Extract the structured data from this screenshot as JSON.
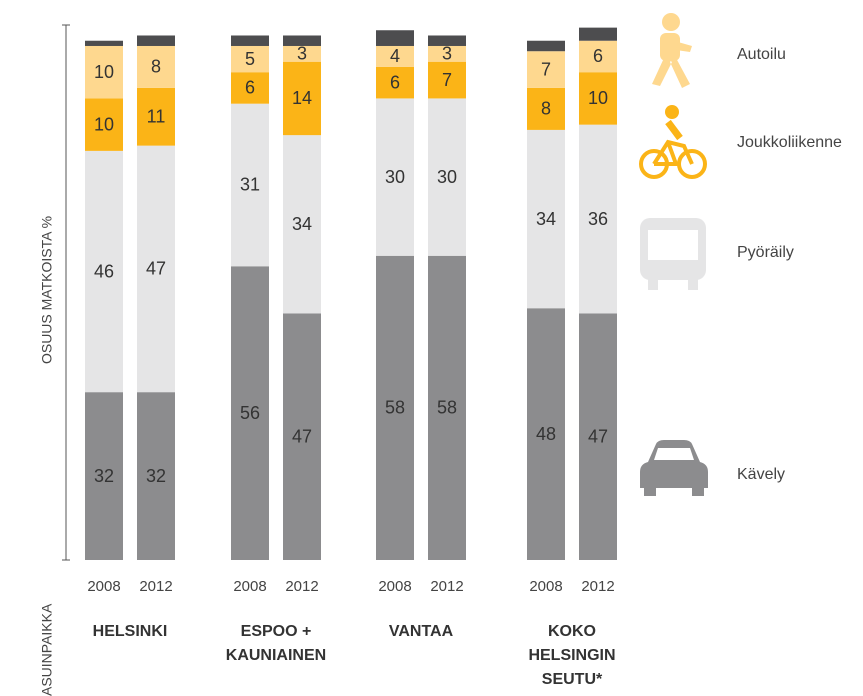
{
  "chart_data": {
    "type": "bar",
    "stacked": true,
    "y_axis_label": "OSUUS MATKOISTA %",
    "x_axis_label": "ASUINPAIKKA",
    "categories": [
      "2008",
      "2012",
      "2008",
      "2012",
      "2008",
      "2012",
      "2008",
      "2012"
    ],
    "group_labels": [
      "HELSINKI",
      "ESPOO +\nKAUNIAINEN",
      "VANTAA",
      "KOKO\nHELSINGIN\nSEUTU*"
    ],
    "ylim": [
      0,
      102
    ],
    "series": [
      {
        "name": "Autoilu",
        "color": "#8c8c8e",
        "values": [
          32,
          32,
          56,
          47,
          58,
          58,
          48,
          47
        ]
      },
      {
        "name": "Joukkoliikenne",
        "color": "#e5e5e6",
        "values": [
          46,
          47,
          31,
          34,
          30,
          30,
          34,
          36
        ]
      },
      {
        "name": "Pyöräily",
        "color": "#fbb417",
        "values": [
          10,
          11,
          6,
          14,
          6,
          7,
          8,
          10
        ]
      },
      {
        "name": "Kävely",
        "color": "#fed88f",
        "values": [
          10,
          8,
          5,
          3,
          4,
          3,
          7,
          6
        ]
      },
      {
        "color": "#4d4d4f",
        "values": [
          1,
          2,
          2,
          2,
          3,
          2,
          2,
          2.5
        ]
      }
    ]
  }
}
